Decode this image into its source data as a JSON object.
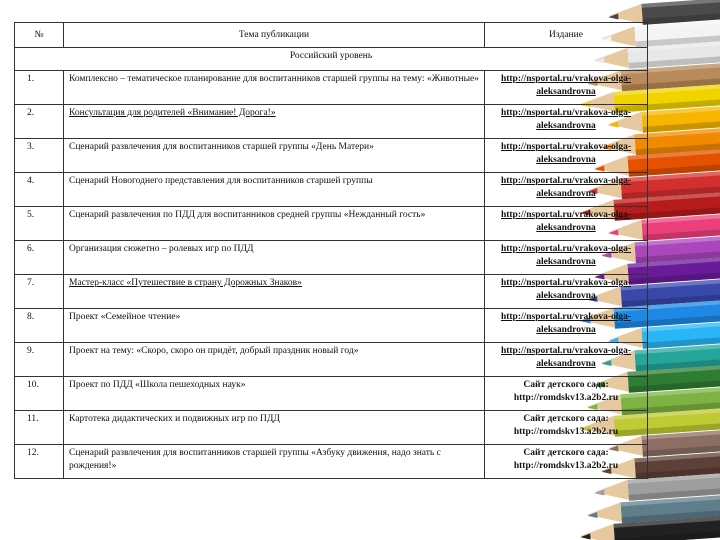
{
  "table": {
    "headers": {
      "num": "№",
      "topic": "Тема публикации",
      "publication": "Издание"
    },
    "section_title": "Российский уровень",
    "rows": [
      {
        "num": "1.",
        "topic": "Комплексно – тематическое планирование для воспитанников старшей группы на тему: «Животные»",
        "pub": "http://nsportal.ru/vrakova-olga-aleksandrovna"
      },
      {
        "num": "2.",
        "topic": "Консультация для родителей «Внимание! Дорога!»",
        "pub": "http://nsportal.ru/vrakova-olga-aleksandrovna"
      },
      {
        "num": "3.",
        "topic": "Сценарий развлечения для воспитанников старшей группы «День Матери»",
        "pub": "http://nsportal.ru/vrakova-olga-aleksandrovna"
      },
      {
        "num": "4.",
        "topic": "Сценарий Новогоднего представления для воспитанников старшей группы",
        "pub": "http://nsportal.ru/vrakova-olga-aleksandrovna"
      },
      {
        "num": "5.",
        "topic": "Сценарий развлечения по ПДД для воспитанников средней группы «Нежданный гость»",
        "pub": "http://nsportal.ru/vrakova-olga-aleksandrovna"
      },
      {
        "num": "6.",
        "topic": "Организация сюжетно – ролевых игр по ПДД",
        "pub": "http://nsportal.ru/vrakova-olga-aleksandrovna"
      },
      {
        "num": "7.",
        "topic": "Мастер-класс «Путешествие в страну Дорожных Знаков»",
        "pub": "http://nsportal.ru/vrakova-olga-aleksandrovna"
      },
      {
        "num": "8.",
        "topic": "Проект «Семейное чтение»",
        "pub": "http://nsportal.ru/vrakova-olga-aleksandrovna"
      },
      {
        "num": "9.",
        "topic": "Проект на тему: «Скоро, скоро он придёт, добрый праздник новый год»",
        "pub": "http://nsportal.ru/vrakova-olga-aleksandrovna"
      },
      {
        "num": "10.",
        "topic": "Проект по ПДД «Школа пешеходных наук»",
        "pub_label": "Сайт детского сада:",
        "pub_url": "http://romdskv13.a2b2.ru"
      },
      {
        "num": "11.",
        "topic": "Картотека дидактических и подвижных игр по ПДД",
        "pub_label": "Сайт детского сада:",
        "pub_url": "http://romdskv13.a2b2.ru"
      },
      {
        "num": "12.",
        "topic": "Сценарий развлечения для воспитанников старшей группы «Азбуку движения, надо знать с рождения!»",
        "pub_label": "Сайт детского сада:",
        "pub_url": "http://romdskv13.a2b2.ru"
      }
    ]
  },
  "pencil_colors": [
    "#4a4a4a",
    "#f4f4f4",
    "#e8e8e8",
    "#b98a5a",
    "#f0d400",
    "#f7b500",
    "#f28a00",
    "#e65100",
    "#d32f2f",
    "#b71c1c",
    "#ec407a",
    "#ab47bc",
    "#6a1b9a",
    "#3949ab",
    "#1e88e5",
    "#29b6f6",
    "#26a69a",
    "#2e7d32",
    "#7cb342",
    "#c0ca33",
    "#8d6e63",
    "#5d4037",
    "#9e9e9e",
    "#607d8b",
    "#212121"
  ]
}
